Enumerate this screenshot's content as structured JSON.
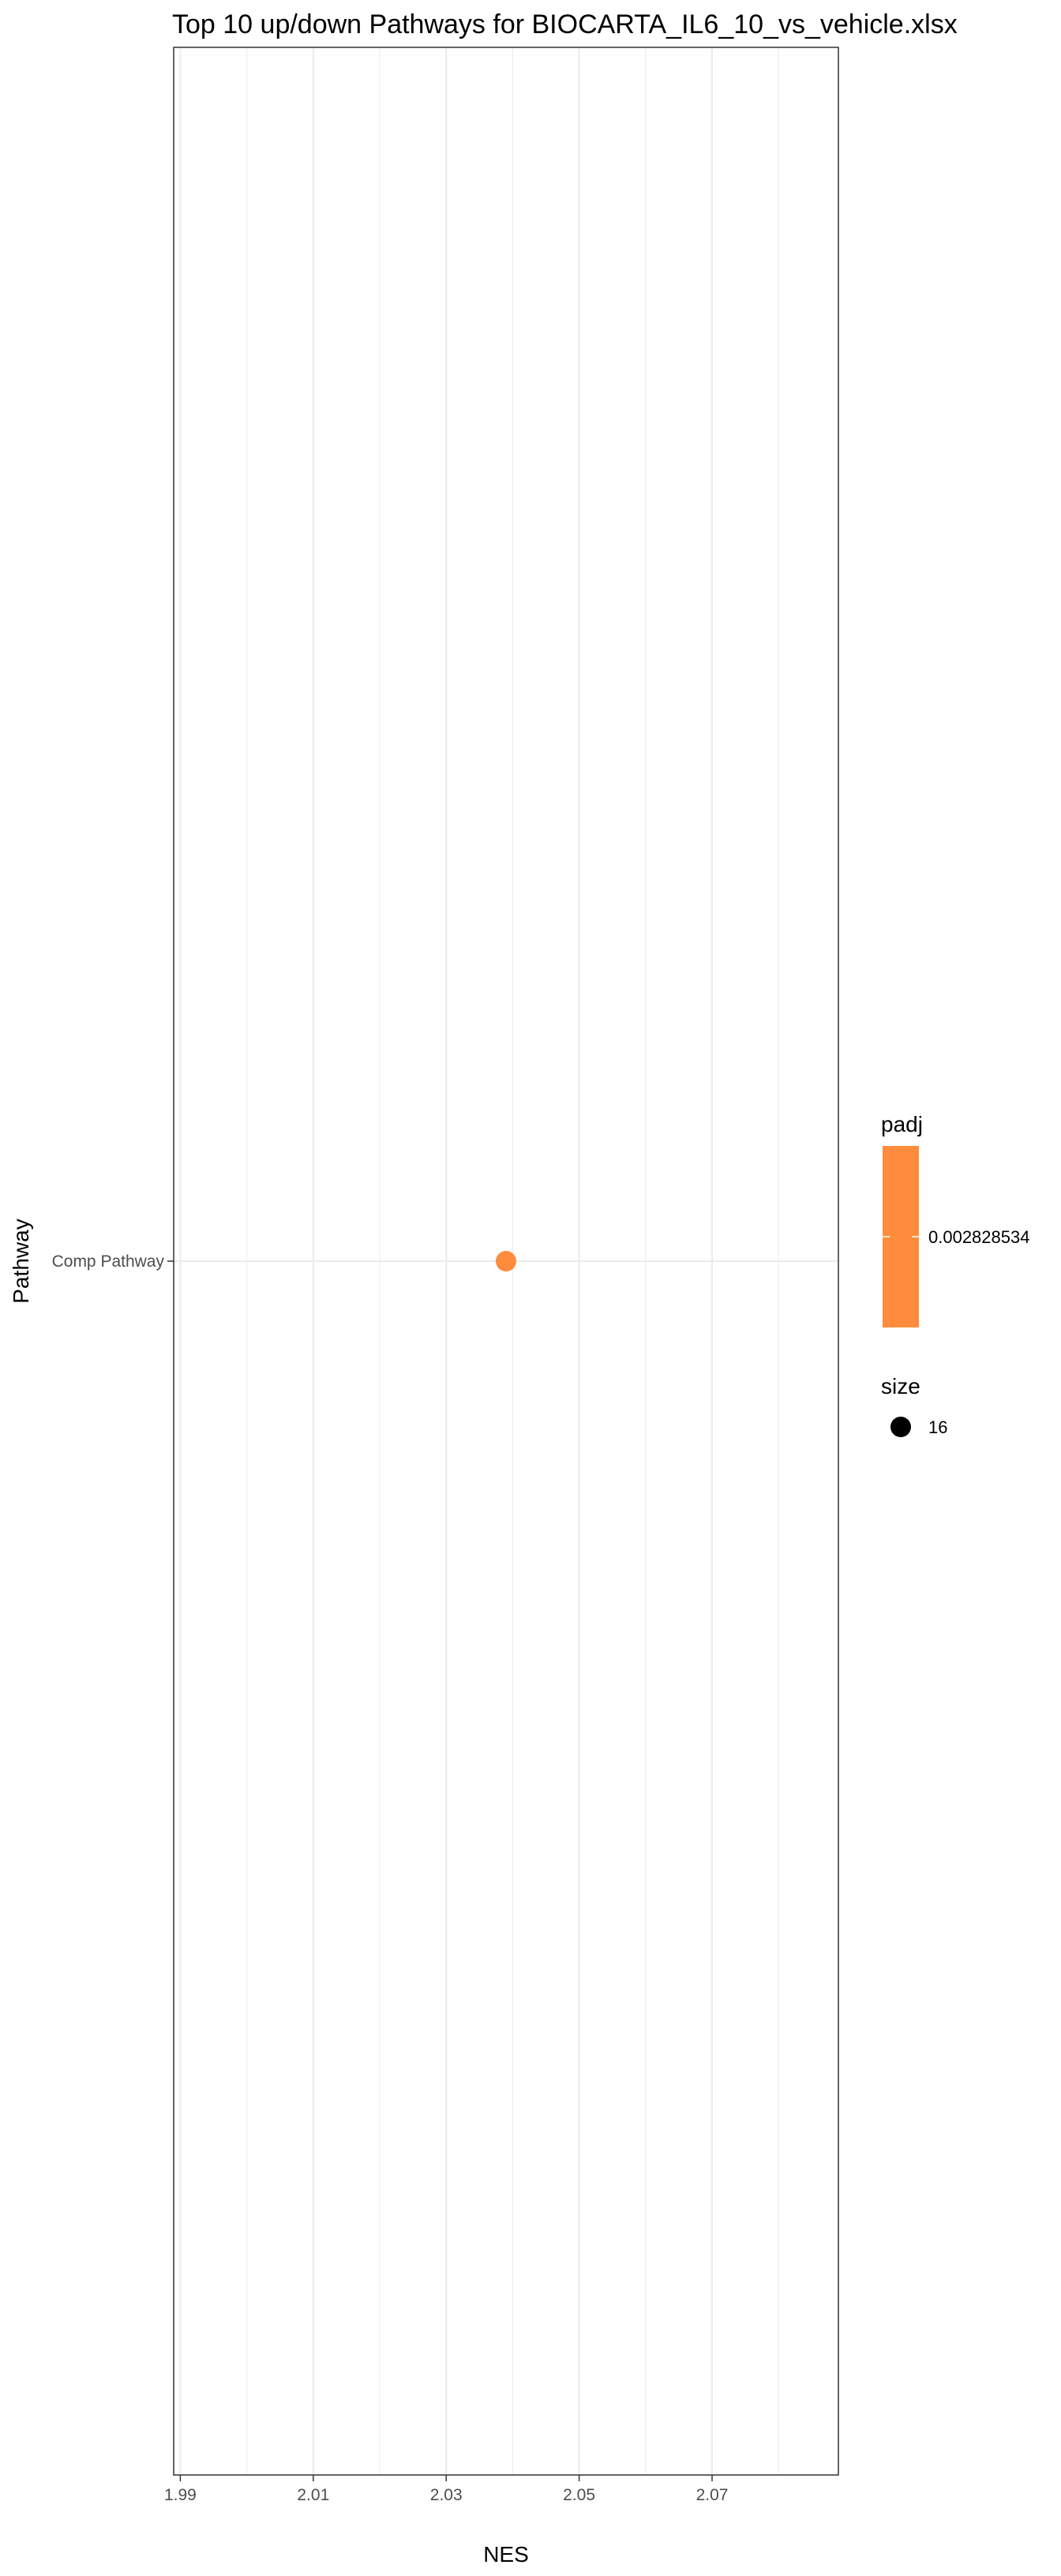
{
  "chart_data": {
    "type": "scatter",
    "title": "Top 10 up/down Pathways for  BIOCARTA_IL6_10_vs_vehicle.xlsx",
    "xlabel": "NES",
    "ylabel": "Pathway",
    "xlim": [
      1.989,
      2.089
    ],
    "x_ticks": [
      "1.99",
      "2.01",
      "2.03",
      "2.05",
      "2.07"
    ],
    "x_tick_values": [
      1.99,
      2.01,
      2.03,
      2.05,
      2.07
    ],
    "categories": [
      "Comp Pathway"
    ],
    "points": [
      {
        "pathway": "Comp Pathway",
        "NES": 2.039,
        "padj": 0.002828534,
        "size": 16
      }
    ],
    "grid": true,
    "point_color": "#FF8C3C",
    "legend": {
      "position": "right",
      "color_title": "padj",
      "color_label": "0.002828534",
      "color_fill": "#FF8C3C",
      "size_title": "size",
      "size_label": "16"
    }
  }
}
